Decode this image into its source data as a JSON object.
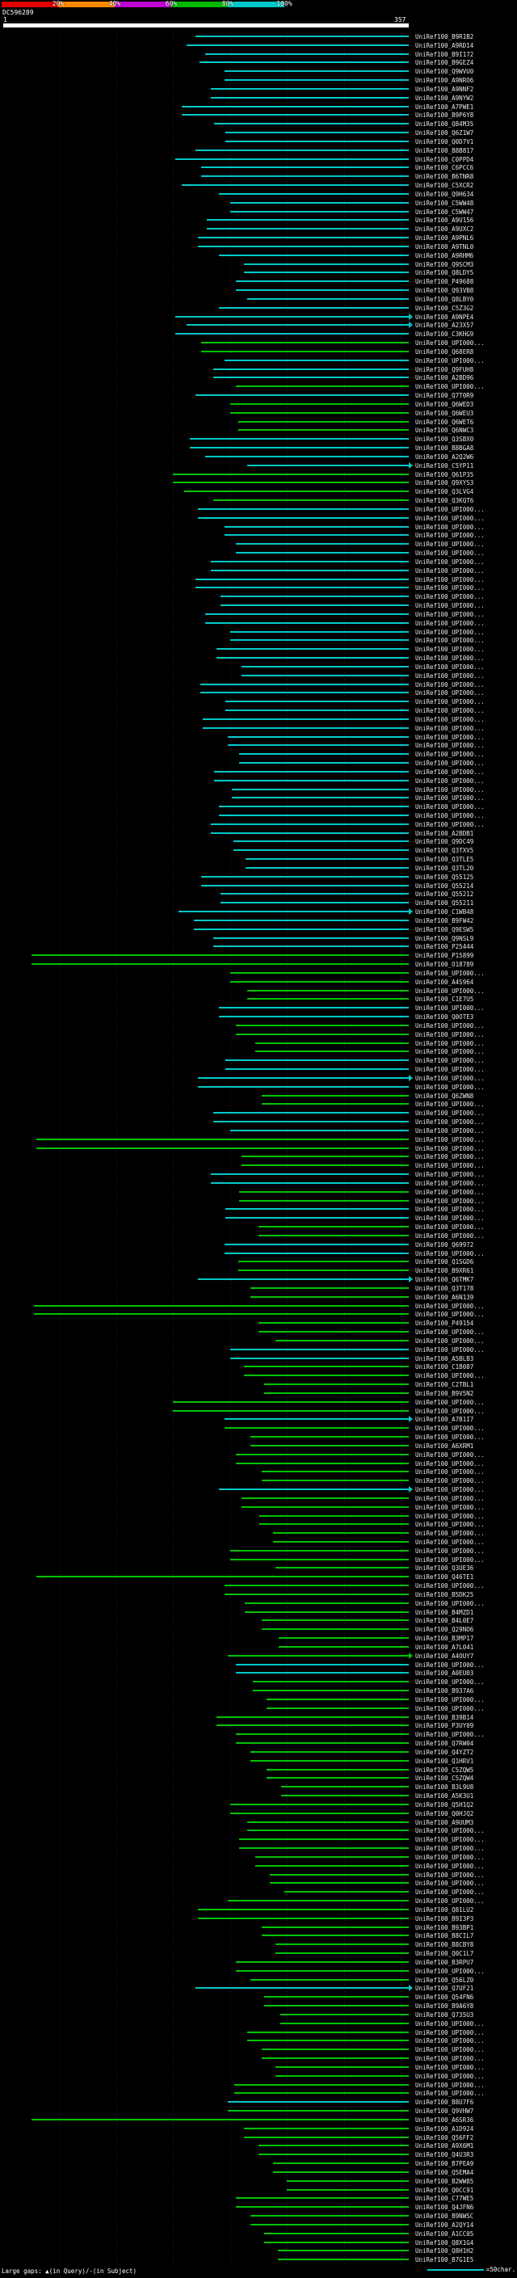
{
  "scale": {
    "segments": [
      {
        "label": "20%",
        "color": "#e00000"
      },
      {
        "label": "40%",
        "color": "#ff8800"
      },
      {
        "label": "60%",
        "color": "#c000d0"
      },
      {
        "label": "80%",
        "color": "#00b800"
      },
      {
        "label": "100%",
        "color": "#00c8c8"
      }
    ]
  },
  "query": {
    "id": "DC596289",
    "start_label": "1",
    "end_label": "357",
    "length": 357,
    "color": "#ffffff"
  },
  "footer": {
    "large_gaps": "Large gaps: ▲(in Query)/-(in Subject)",
    "legend_text": "=50char.",
    "legend_line_chars": 50,
    "legend_line_color": "#00c8c8"
  },
  "chart_data": {
    "type": "alignment_overview",
    "query_id": "DC596289",
    "query_length": 357,
    "default_end": 357,
    "colors": {
      "c": "#00c8c8",
      "g": "#00c400"
    },
    "color_meaning": {
      "c": "80-100% identity (cyan)",
      "g": "60-80% identity (green)"
    },
    "label_prefix": "UniRef100_",
    "gridline_interval_chars": 50,
    "rows": [
      [
        "B9R1B2",
        170,
        "c"
      ],
      [
        "A9RD14",
        162,
        "c"
      ],
      [
        "B9I172",
        178,
        "c"
      ],
      [
        "B9GEZ4",
        173,
        "c"
      ],
      [
        "Q9WVU0",
        195,
        "c"
      ],
      [
        "A9NRO6",
        195,
        "c"
      ],
      [
        "A9NNF2",
        183,
        "c"
      ],
      [
        "A9NYW2",
        183,
        "c"
      ],
      [
        "A7PWE1",
        158,
        "c"
      ],
      [
        "B9P6Y8",
        158,
        "c"
      ],
      [
        "Q84M35",
        186,
        "c"
      ],
      [
        "Q6Z1W7",
        196,
        "c"
      ],
      [
        "Q0D7V1",
        196,
        "c"
      ],
      [
        "B8B817",
        170,
        "c"
      ],
      [
        "C0PPD4",
        152,
        "c"
      ],
      [
        "C6PCC6",
        175,
        "c"
      ],
      [
        "B6TNR8",
        175,
        "c"
      ],
      [
        "C5XCR2",
        158,
        "c"
      ],
      [
        "Q9H634",
        190,
        "c"
      ],
      [
        "C5WW48",
        200,
        "c"
      ],
      [
        "C5WW47",
        200,
        "c"
      ],
      [
        "A9U156",
        180,
        "c"
      ],
      [
        "A9UXC2",
        180,
        "c"
      ],
      [
        "A9PNL6",
        172,
        "c"
      ],
      [
        "A9TNL0",
        172,
        "c"
      ],
      [
        "A9RHM6",
        190,
        "c"
      ],
      [
        "Q9SCM3",
        212,
        "c"
      ],
      [
        "Q8LDY5",
        212,
        "c"
      ],
      [
        "P49688",
        205,
        "c"
      ],
      [
        "Q93VB8",
        205,
        "c"
      ],
      [
        "Q8LBY0",
        215,
        "c"
      ],
      [
        "C5Z3G2",
        190,
        "c"
      ],
      [
        "A9NPE4",
        152,
        "c",
        1
      ],
      [
        "A23X57",
        162,
        "c",
        1
      ],
      [
        "C3KHG9",
        152,
        "c"
      ],
      [
        "UPI000...",
        175,
        "g"
      ],
      [
        "Q68ER8",
        175,
        "g"
      ],
      [
        "UPI000...",
        195,
        "c"
      ],
      [
        "Q9FUH8",
        185,
        "c"
      ],
      [
        "A2BD96",
        185,
        "c"
      ],
      [
        "UPI000...",
        205,
        "g"
      ],
      [
        "Q7T0R9",
        170,
        "c"
      ],
      [
        "Q6WED3",
        200,
        "g"
      ],
      [
        "Q6WEU3",
        200,
        "g"
      ],
      [
        "Q6WET6",
        207,
        "g"
      ],
      [
        "Q6NWC3",
        207,
        "g"
      ],
      [
        "Q3SBX0",
        165,
        "c"
      ],
      [
        "B8BGA8",
        165,
        "c"
      ],
      [
        "A2Q2W6",
        178,
        "c"
      ],
      [
        "C5YP11",
        215,
        "c",
        1
      ],
      [
        "Q61P35",
        150,
        "g"
      ],
      [
        "Q9XYS3",
        150,
        "g"
      ],
      [
        "Q3LVG4",
        160,
        "g"
      ],
      [
        "Q3KQT6",
        185,
        "g"
      ],
      [
        "UPI000...",
        172,
        "c"
      ],
      [
        "UPI000...",
        172,
        "c"
      ],
      [
        "UPI000...",
        195,
        "c"
      ],
      [
        "UPI000...",
        195,
        "c"
      ],
      [
        "UPI000...",
        205,
        "c"
      ],
      [
        "UPI000...",
        205,
        "c"
      ],
      [
        "UPI000...",
        183,
        "c"
      ],
      [
        "UPI000...",
        183,
        "c"
      ],
      [
        "UPI000...",
        170,
        "c"
      ],
      [
        "UPI000...",
        170,
        "c"
      ],
      [
        "UPI000...",
        192,
        "c"
      ],
      [
        "UPI000...",
        192,
        "c"
      ],
      [
        "UPI000...",
        178,
        "c"
      ],
      [
        "UPI000...",
        178,
        "c"
      ],
      [
        "UPI000...",
        200,
        "c"
      ],
      [
        "UPI000...",
        200,
        "c"
      ],
      [
        "UPI000...",
        188,
        "c"
      ],
      [
        "UPI000...",
        188,
        "c"
      ],
      [
        "UPI000...",
        210,
        "c"
      ],
      [
        "UPI000...",
        210,
        "c"
      ],
      [
        "UPI000...",
        174,
        "c"
      ],
      [
        "UPI000...",
        174,
        "c"
      ],
      [
        "UPI000...",
        196,
        "c"
      ],
      [
        "UPI000...",
        196,
        "c"
      ],
      [
        "UPI000...",
        176,
        "c"
      ],
      [
        "UPI000...",
        176,
        "c"
      ],
      [
        "UPI000...",
        198,
        "c"
      ],
      [
        "UPI000...",
        198,
        "c"
      ],
      [
        "UPI000...",
        208,
        "c"
      ],
      [
        "UPI000...",
        208,
        "c"
      ],
      [
        "UPI000...",
        186,
        "c"
      ],
      [
        "UPI000...",
        186,
        "c"
      ],
      [
        "UPI000...",
        202,
        "c"
      ],
      [
        "UPI000...",
        202,
        "c"
      ],
      [
        "UPI000...",
        190,
        "c"
      ],
      [
        "UPI000...",
        190,
        "c"
      ],
      [
        "UPI000...",
        183,
        "c"
      ],
      [
        "A2BDB1",
        183,
        "c"
      ],
      [
        "Q9DC49",
        203,
        "c"
      ],
      [
        "Q3TXV5",
        203,
        "c"
      ],
      [
        "Q3TLE5",
        214,
        "c"
      ],
      [
        "Q3TL20",
        214,
        "c"
      ],
      [
        "Q55125",
        175,
        "c"
      ],
      [
        "Q55214",
        175,
        "c"
      ],
      [
        "Q55212",
        192,
        "c"
      ],
      [
        "Q55211",
        192,
        "c"
      ],
      [
        "C1WB48",
        155,
        "c",
        1
      ],
      [
        "B9FW42",
        168,
        "c"
      ],
      [
        "Q9ESW5",
        168,
        "c"
      ],
      [
        "Q9NSL9",
        185,
        "c"
      ],
      [
        "P25444",
        185,
        "c"
      ],
      [
        "P15899",
        26,
        "g"
      ],
      [
        "O18789",
        26,
        "g"
      ],
      [
        "UPI000...",
        200,
        "g"
      ],
      [
        "A4S964",
        200,
        "g"
      ],
      [
        "UPI000...",
        215,
        "g"
      ],
      [
        "C1E7U5",
        215,
        "g"
      ],
      [
        "UPI000...",
        190,
        "c"
      ],
      [
        "Q0OTE3",
        190,
        "c"
      ],
      [
        "UPI000...",
        205,
        "g"
      ],
      [
        "UPI000...",
        205,
        "g"
      ],
      [
        "UPI000...",
        222,
        "g"
      ],
      [
        "UPI000...",
        222,
        "g"
      ],
      [
        "UPI000...",
        196,
        "c"
      ],
      [
        "UPI000...",
        196,
        "c"
      ],
      [
        "UPI000...",
        172,
        "c",
        1
      ],
      [
        "UPI000...",
        172,
        "c"
      ],
      [
        "Q6ZWN8",
        228,
        "g"
      ],
      [
        "UPI000...",
        228,
        "g"
      ],
      [
        "UPI000...",
        185,
        "c"
      ],
      [
        "UPI000...",
        185,
        "c"
      ],
      [
        "UPI000...",
        200,
        "c"
      ],
      [
        "UPI000...",
        30,
        "g"
      ],
      [
        "UPI000...",
        30,
        "g"
      ],
      [
        "UPI000...",
        210,
        "g"
      ],
      [
        "UPI000...",
        210,
        "g"
      ],
      [
        "UPI000...",
        183,
        "c"
      ],
      [
        "UPI000...",
        183,
        "c"
      ],
      [
        "UPI000...",
        208,
        "g"
      ],
      [
        "UPI000...",
        208,
        "g"
      ],
      [
        "UPI000...",
        196,
        "c"
      ],
      [
        "UPI000...",
        196,
        "c"
      ],
      [
        "UPI000...",
        225,
        "g"
      ],
      [
        "UPI000...",
        225,
        "g"
      ],
      [
        "Q69972",
        195,
        "c"
      ],
      [
        "UPI000...",
        195,
        "c"
      ],
      [
        "Q1SGD6",
        207,
        "g"
      ],
      [
        "B9XR61",
        207,
        "g"
      ],
      [
        "Q6TMK7",
        172,
        "c",
        1
      ],
      [
        "Q3T178",
        218,
        "g"
      ],
      [
        "A6N139",
        218,
        "g"
      ],
      [
        "UPI000...",
        28,
        "g"
      ],
      [
        "UPI000...",
        28,
        "g"
      ],
      [
        "P49154",
        225,
        "g"
      ],
      [
        "UPI000...",
        225,
        "g"
      ],
      [
        "UPI000...",
        240,
        "g"
      ],
      [
        "UPI000...",
        200,
        "c"
      ],
      [
        "A5BLB3",
        200,
        "c"
      ],
      [
        "C1B087",
        212,
        "g"
      ],
      [
        "UPI000...",
        212,
        "g"
      ],
      [
        "C2TBL1",
        230,
        "g"
      ],
      [
        "B9V5N2",
        230,
        "g"
      ],
      [
        "UPI000...",
        150,
        "g"
      ],
      [
        "UPI000...",
        150,
        "g"
      ],
      [
        "A7B1I7",
        195,
        "c",
        1
      ],
      [
        "UPI000...",
        195,
        "g"
      ],
      [
        "UPI000...",
        218,
        "g"
      ],
      [
        "A6XRM1",
        218,
        "g"
      ],
      [
        "UPI000...",
        205,
        "g"
      ],
      [
        "UPI000...",
        205,
        "g"
      ],
      [
        "UPI000...",
        228,
        "g"
      ],
      [
        "UPI000...",
        228,
        "g"
      ],
      [
        "UPI000...",
        190,
        "c",
        1
      ],
      [
        "UPI000...",
        210,
        "g"
      ],
      [
        "UPI000...",
        210,
        "g"
      ],
      [
        "UPI000...",
        226,
        "g"
      ],
      [
        "UPI000...",
        226,
        "g"
      ],
      [
        "UPI000...",
        238,
        "g"
      ],
      [
        "UPI000...",
        238,
        "g"
      ],
      [
        "UPI000...",
        200,
        "g"
      ],
      [
        "UPI000...",
        200,
        "g"
      ],
      [
        "Q3UE36",
        240,
        "g"
      ],
      [
        "Q46TE1",
        30,
        "g"
      ],
      [
        "UPI000...",
        195,
        "g"
      ],
      [
        "B5DK25",
        195,
        "g"
      ],
      [
        "UPI000...",
        213,
        "g"
      ],
      [
        "B4MZD1",
        213,
        "g"
      ],
      [
        "B4L0E7",
        228,
        "g"
      ],
      [
        "Q29NO6",
        228,
        "g"
      ],
      [
        "B3MP17",
        243,
        "g"
      ],
      [
        "A7L041",
        243,
        "g"
      ],
      [
        "A4OUY7",
        198,
        "g",
        1
      ],
      [
        "UPI000...",
        205,
        "c"
      ],
      [
        "A0EU03",
        205,
        "c"
      ],
      [
        "UPI000...",
        220,
        "g"
      ],
      [
        "B937A6",
        220,
        "g"
      ],
      [
        "UPI000...",
        232,
        "g"
      ],
      [
        "UPI000...",
        232,
        "g"
      ],
      [
        "B39B14",
        188,
        "g"
      ],
      [
        "P3UY09",
        188,
        "g"
      ],
      [
        "UPI000...",
        205,
        "g"
      ],
      [
        "Q7RW04",
        205,
        "g"
      ],
      [
        "Q4YZT2",
        218,
        "g"
      ],
      [
        "Q1HRV1",
        218,
        "g"
      ],
      [
        "C5ZQW5",
        232,
        "g"
      ],
      [
        "C5ZQW4",
        232,
        "g"
      ],
      [
        "B3L9U8",
        245,
        "g"
      ],
      [
        "A5K3U1",
        245,
        "g"
      ],
      [
        "Q5H1Q2",
        200,
        "g"
      ],
      [
        "Q0HJQ2",
        200,
        "g"
      ],
      [
        "A9UUM3",
        215,
        "g"
      ],
      [
        "UPI000...",
        215,
        "g"
      ],
      [
        "UPI000...",
        208,
        "g"
      ],
      [
        "UPI000...",
        208,
        "g"
      ],
      [
        "UPI000...",
        222,
        "g"
      ],
      [
        "UPI000...",
        222,
        "g"
      ],
      [
        "UPI000...",
        235,
        "g"
      ],
      [
        "UPI000...",
        235,
        "g"
      ],
      [
        "UPI000...",
        248,
        "g"
      ],
      [
        "UPI000...",
        198,
        "g"
      ],
      [
        "Q81LU2",
        172,
        "g"
      ],
      [
        "B9I3P3",
        172,
        "g"
      ],
      [
        "B93BP1",
        228,
        "g"
      ],
      [
        "B8CIL7",
        228,
        "g"
      ],
      [
        "B8CBY8",
        240,
        "g"
      ],
      [
        "Q0C1L7",
        240,
        "g"
      ],
      [
        "B3RPU7",
        205,
        "g"
      ],
      [
        "UPI000...",
        205,
        "g"
      ],
      [
        "Q56LZ0",
        218,
        "g"
      ],
      [
        "Q7UF21",
        170,
        "c",
        1
      ],
      [
        "Q54FN6",
        230,
        "g"
      ],
      [
        "B9A6Y8",
        230,
        "g"
      ],
      [
        "Q735U3",
        244,
        "g"
      ],
      [
        "UPI000...",
        244,
        "g"
      ],
      [
        "UPI000...",
        215,
        "g"
      ],
      [
        "UPI000...",
        215,
        "g"
      ],
      [
        "UPI000...",
        228,
        "g"
      ],
      [
        "UPI000...",
        228,
        "g"
      ],
      [
        "UPI000...",
        240,
        "g"
      ],
      [
        "UPI000...",
        240,
        "g"
      ],
      [
        "UPI000...",
        204,
        "g"
      ],
      [
        "UPI000...",
        204,
        "g"
      ],
      [
        "B8U7F6",
        198,
        "c"
      ],
      [
        "Q9VHW7",
        198,
        "g"
      ],
      [
        "A6SR36",
        26,
        "g"
      ],
      [
        "A1D924",
        212,
        "g"
      ],
      [
        "Q56FF2",
        212,
        "g"
      ],
      [
        "A9X6M1",
        225,
        "g"
      ],
      [
        "Q4U3R3",
        225,
        "g"
      ],
      [
        "B7PEA9",
        238,
        "g"
      ],
      [
        "Q5EMA4",
        238,
        "g"
      ],
      [
        "B2WW85",
        250,
        "g"
      ],
      [
        "Q0CC91",
        250,
        "g"
      ],
      [
        "C77WE5",
        205,
        "g"
      ],
      [
        "Q4JFN6",
        205,
        "g"
      ],
      [
        "B9NWSC",
        218,
        "g"
      ],
      [
        "A2QY14",
        218,
        "g"
      ],
      [
        "A1CC05",
        230,
        "g"
      ],
      [
        "Q8X1G4",
        230,
        "g"
      ],
      [
        "Q8H1H2",
        242,
        "g"
      ],
      [
        "B7G1E5",
        242,
        "g"
      ]
    ]
  }
}
